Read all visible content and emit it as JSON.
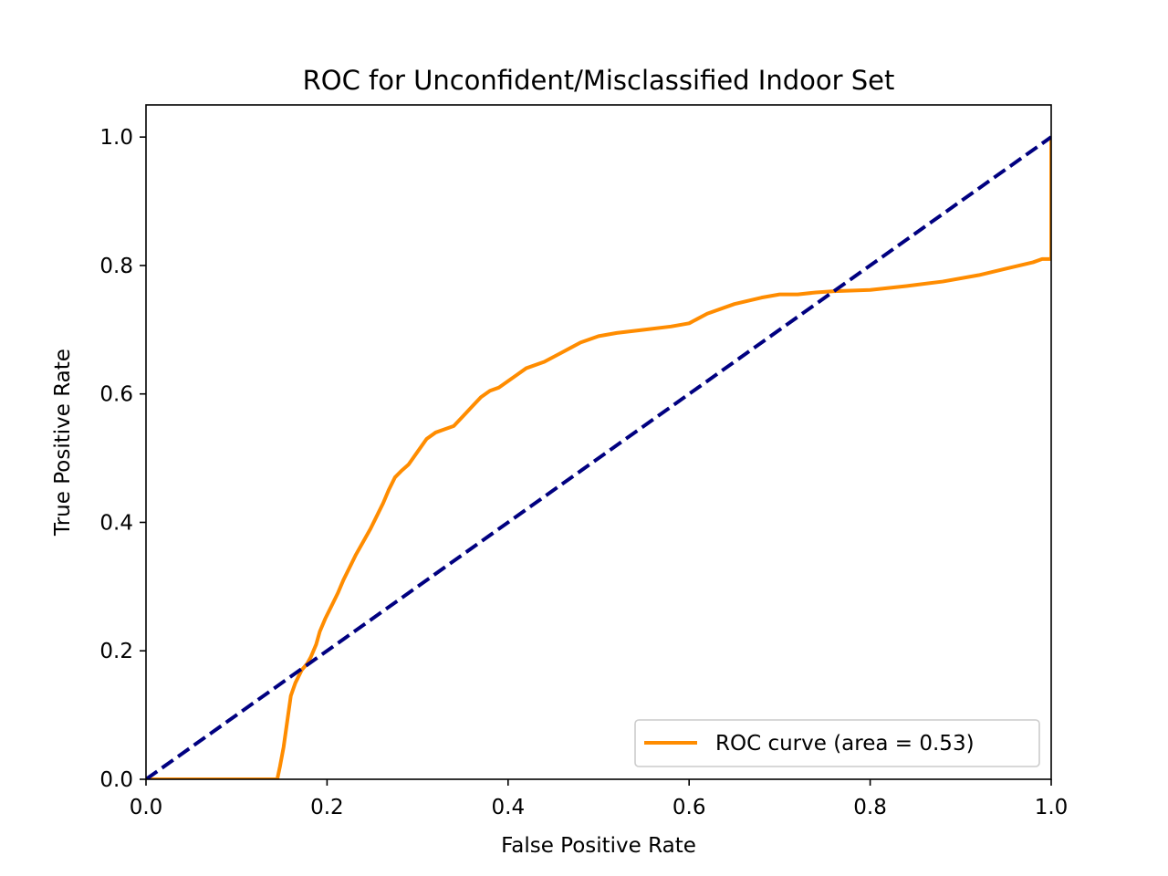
{
  "chart_data": {
    "type": "line",
    "title": "ROC for Unconfident/Misclassified Indoor Set",
    "xlabel": "False Positive Rate",
    "ylabel": "True Positive Rate",
    "xlim": [
      0.0,
      1.0
    ],
    "ylim": [
      0.0,
      1.05
    ],
    "x_ticks": [
      "0.0",
      "0.2",
      "0.4",
      "0.6",
      "0.8",
      "1.0"
    ],
    "y_ticks": [
      "0.0",
      "0.2",
      "0.4",
      "0.6",
      "0.8",
      "1.0"
    ],
    "grid": false,
    "legend_position": "lower right",
    "series": [
      {
        "name": "ROC curve (area = 0.53)",
        "color": "#ff8c00",
        "style": "solid",
        "x": [
          0.0,
          0.145,
          0.148,
          0.152,
          0.155,
          0.158,
          0.16,
          0.165,
          0.172,
          0.178,
          0.182,
          0.188,
          0.192,
          0.198,
          0.205,
          0.212,
          0.218,
          0.225,
          0.232,
          0.24,
          0.248,
          0.255,
          0.262,
          0.268,
          0.275,
          0.282,
          0.29,
          0.3,
          0.31,
          0.32,
          0.33,
          0.34,
          0.35,
          0.36,
          0.37,
          0.38,
          0.39,
          0.4,
          0.41,
          0.42,
          0.44,
          0.46,
          0.48,
          0.5,
          0.52,
          0.55,
          0.58,
          0.6,
          0.62,
          0.65,
          0.68,
          0.7,
          0.72,
          0.74,
          0.76,
          0.8,
          0.84,
          0.88,
          0.92,
          0.95,
          0.98,
          0.99,
          1.0,
          1.0
        ],
        "y": [
          0.0,
          0.0,
          0.02,
          0.05,
          0.08,
          0.11,
          0.13,
          0.15,
          0.17,
          0.18,
          0.19,
          0.21,
          0.23,
          0.25,
          0.27,
          0.29,
          0.31,
          0.33,
          0.35,
          0.37,
          0.39,
          0.41,
          0.43,
          0.45,
          0.47,
          0.48,
          0.49,
          0.51,
          0.53,
          0.54,
          0.545,
          0.55,
          0.565,
          0.58,
          0.595,
          0.605,
          0.61,
          0.62,
          0.63,
          0.64,
          0.65,
          0.665,
          0.68,
          0.69,
          0.695,
          0.7,
          0.705,
          0.71,
          0.725,
          0.74,
          0.75,
          0.755,
          0.755,
          0.758,
          0.76,
          0.762,
          0.768,
          0.775,
          0.785,
          0.795,
          0.805,
          0.81,
          0.81,
          1.0
        ]
      },
      {
        "name": "",
        "color": "#000080",
        "style": "dashed",
        "x": [
          0.0,
          1.0
        ],
        "y": [
          0.0,
          1.0
        ]
      }
    ]
  }
}
